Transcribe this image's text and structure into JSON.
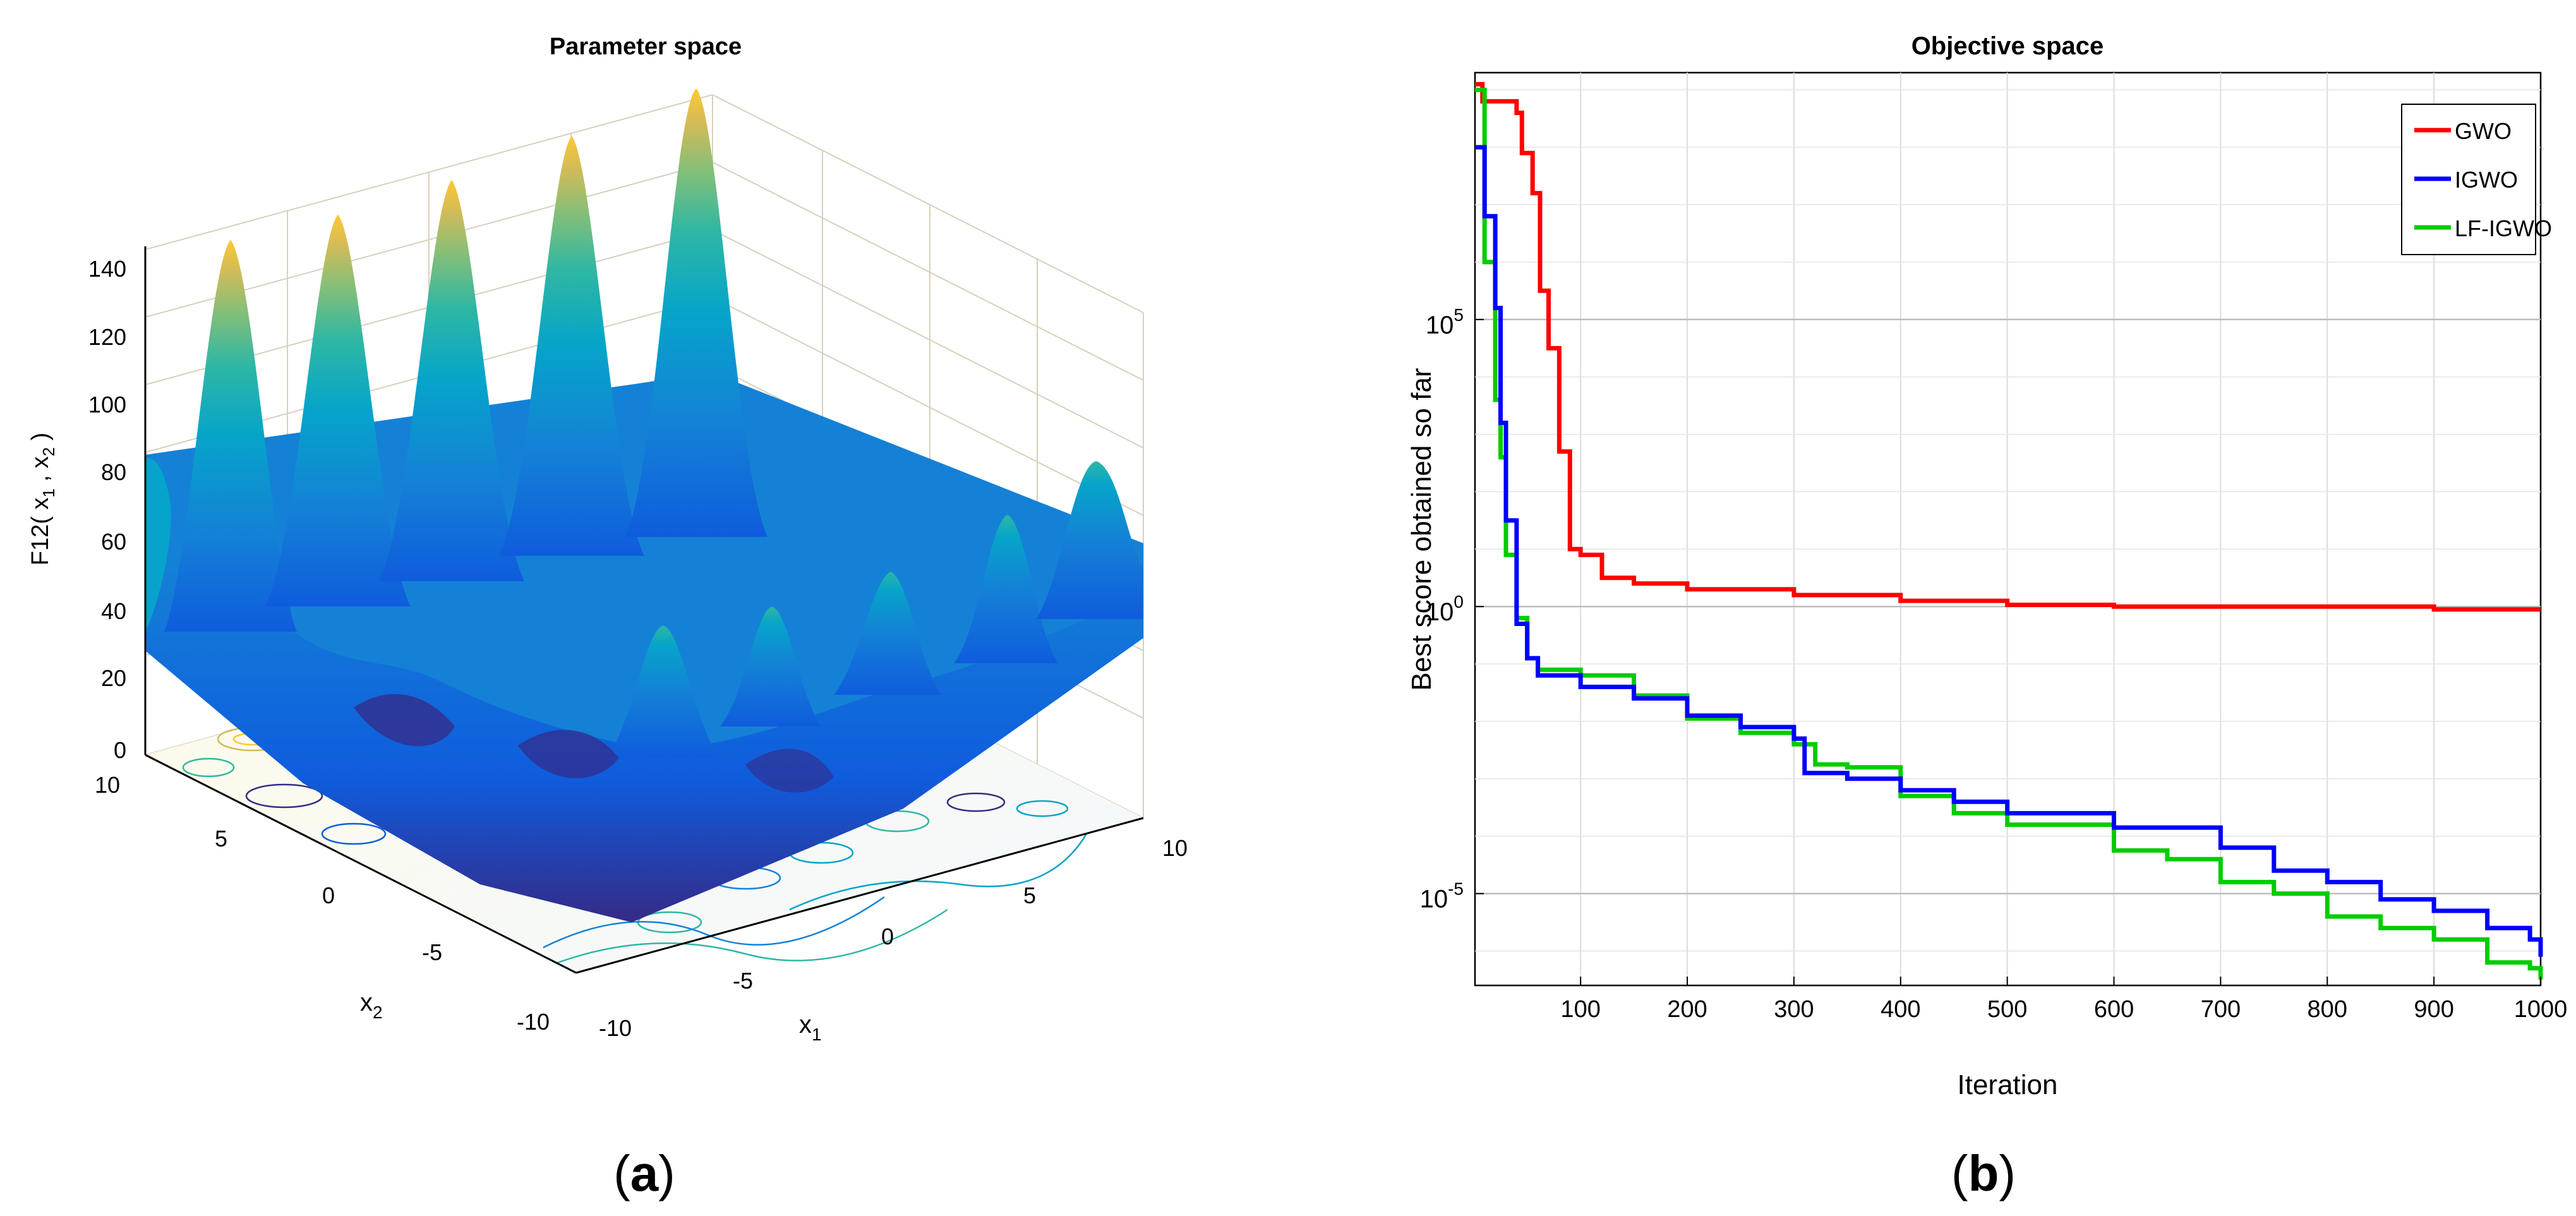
{
  "panel_labels": {
    "a": {
      "open": "(",
      "letter": "a",
      "close": ")"
    },
    "b": {
      "open": "(",
      "letter": "b",
      "close": ")"
    }
  },
  "chart_data": [
    {
      "type": "surface3d",
      "title": "Parameter space",
      "zlabel": "F12( x1 , x2 )",
      "zlabel_parts": {
        "prefix": "F12( x",
        "sub1": "1",
        "mid": " , x",
        "sub2": "2",
        "suffix": " )"
      },
      "xlabel": "x1",
      "xlabel_parts": {
        "main": "x",
        "sub": "1"
      },
      "ylabel": "x2",
      "ylabel_parts": {
        "main": "x",
        "sub": "2"
      },
      "x_ticks": [
        "-10",
        "-5",
        "0",
        "5",
        "10"
      ],
      "y_ticks": [
        "-10",
        "-5",
        "0",
        "5",
        "10"
      ],
      "z_ticks": [
        "0",
        "20",
        "40",
        "60",
        "80",
        "100",
        "120",
        "140"
      ],
      "xlim": [
        -10,
        10
      ],
      "ylim": [
        -10,
        10
      ],
      "zlim": [
        0,
        150
      ],
      "colormap": "parula",
      "colors": [
        "#352a87",
        "#0f5cdd",
        "#1481d6",
        "#06a4ca",
        "#2eb7a4",
        "#87bf77",
        "#d1bb59",
        "#fec832",
        "#f9fb0e"
      ],
      "peaks_along_back_ridge": [
        135,
        138,
        141,
        145,
        150
      ],
      "contour_plot": true,
      "grid": true
    },
    {
      "type": "line",
      "title": "Objective space",
      "xlabel": "Iteration",
      "ylabel": "Best score obtained so far",
      "xlim": [
        1,
        1000
      ],
      "y_scale": "log",
      "ylim_log10": [
        -6.6,
        9.3
      ],
      "x_ticks": [
        100,
        200,
        300,
        400,
        500,
        600,
        700,
        800,
        900,
        1000
      ],
      "y_ticks": [
        {
          "base": "10",
          "exp": "5",
          "value": 100000
        },
        {
          "base": "10",
          "exp": "0",
          "value": 1
        },
        {
          "base": "10",
          "exp": "-5",
          "value": 1e-05
        }
      ],
      "grid": true,
      "legend_position": "top-right",
      "series": [
        {
          "name": "GWO",
          "color": "#ff0000",
          "log10_points": [
            [
              1,
              9.1
            ],
            [
              8,
              8.8
            ],
            [
              40,
              8.6
            ],
            [
              45,
              7.9
            ],
            [
              55,
              7.2
            ],
            [
              62,
              5.5
            ],
            [
              70,
              4.5
            ],
            [
              80,
              2.7
            ],
            [
              90,
              1.0
            ],
            [
              100,
              0.9
            ],
            [
              120,
              0.5
            ],
            [
              150,
              0.4
            ],
            [
              200,
              0.3
            ],
            [
              300,
              0.2
            ],
            [
              400,
              0.1
            ],
            [
              500,
              0.03
            ],
            [
              600,
              0.0
            ],
            [
              700,
              0.0
            ],
            [
              800,
              0.0
            ],
            [
              900,
              -0.05
            ],
            [
              1000,
              -0.05
            ]
          ]
        },
        {
          "name": "IGWO",
          "color": "#0000ff",
          "log10_points": [
            [
              1,
              8.0
            ],
            [
              10,
              6.8
            ],
            [
              20,
              5.2
            ],
            [
              25,
              3.2
            ],
            [
              30,
              1.5
            ],
            [
              40,
              -0.3
            ],
            [
              50,
              -0.9
            ],
            [
              60,
              -1.2
            ],
            [
              100,
              -1.4
            ],
            [
              150,
              -1.6
            ],
            [
              200,
              -1.9
            ],
            [
              250,
              -2.1
            ],
            [
              300,
              -2.3
            ],
            [
              310,
              -2.9
            ],
            [
              350,
              -3.0
            ],
            [
              400,
              -3.2
            ],
            [
              450,
              -3.4
            ],
            [
              500,
              -3.6
            ],
            [
              600,
              -3.85
            ],
            [
              700,
              -4.2
            ],
            [
              750,
              -4.6
            ],
            [
              800,
              -4.8
            ],
            [
              850,
              -5.1
            ],
            [
              900,
              -5.3
            ],
            [
              950,
              -5.6
            ],
            [
              990,
              -5.8
            ],
            [
              1000,
              -6.1
            ]
          ]
        },
        {
          "name": "LF-IGWO",
          "color": "#00cc00",
          "log10_points": [
            [
              1,
              9.0
            ],
            [
              10,
              6.0
            ],
            [
              20,
              3.6
            ],
            [
              25,
              2.6
            ],
            [
              30,
              0.9
            ],
            [
              40,
              -0.2
            ],
            [
              50,
              -0.9
            ],
            [
              60,
              -1.1
            ],
            [
              100,
              -1.2
            ],
            [
              150,
              -1.55
            ],
            [
              200,
              -1.95
            ],
            [
              250,
              -2.2
            ],
            [
              300,
              -2.4
            ],
            [
              320,
              -2.75
            ],
            [
              350,
              -2.8
            ],
            [
              400,
              -3.3
            ],
            [
              450,
              -3.6
            ],
            [
              500,
              -3.8
            ],
            [
              600,
              -4.25
            ],
            [
              650,
              -4.4
            ],
            [
              700,
              -4.8
            ],
            [
              750,
              -5.0
            ],
            [
              800,
              -5.4
            ],
            [
              850,
              -5.6
            ],
            [
              900,
              -5.8
            ],
            [
              950,
              -6.2
            ],
            [
              990,
              -6.3
            ],
            [
              1000,
              -6.5
            ]
          ]
        }
      ]
    }
  ]
}
